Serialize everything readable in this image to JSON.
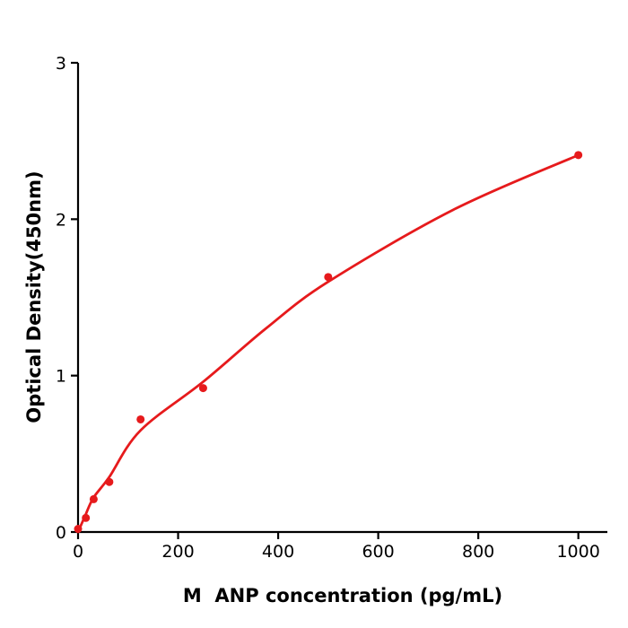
{
  "figure": {
    "background": "#ffffff",
    "accent_red": "#e61a1c",
    "axis_color": "#000000"
  },
  "chart_data": {
    "type": "scatter",
    "title": "",
    "xlabel": "M  ANP concentration (pg/mL)",
    "ylabel": "Optical Density(450nm)",
    "xlim": [
      0,
      1058
    ],
    "ylim": [
      0,
      3
    ],
    "x_ticks": [
      0,
      200,
      400,
      600,
      800,
      1000
    ],
    "y_ticks": [
      0,
      1,
      2,
      3
    ],
    "grid": false,
    "legend_position": "none",
    "series": [
      {
        "name": "standard-points",
        "type": "scatter",
        "color": "#e61a1c",
        "x": [
          0,
          15.6,
          31.2,
          62.5,
          125,
          250,
          500,
          1000
        ],
        "y": [
          0.02,
          0.09,
          0.21,
          0.32,
          0.72,
          0.92,
          1.63,
          2.41
        ]
      },
      {
        "name": "fit-curve",
        "type": "line",
        "color": "#e61a1c",
        "x": [
          0,
          15,
          31,
          62,
          125,
          250,
          375,
          500,
          750,
          1000
        ],
        "y": [
          0.0,
          0.11,
          0.22,
          0.35,
          0.65,
          0.96,
          1.3,
          1.6,
          2.06,
          2.41
        ]
      }
    ]
  }
}
